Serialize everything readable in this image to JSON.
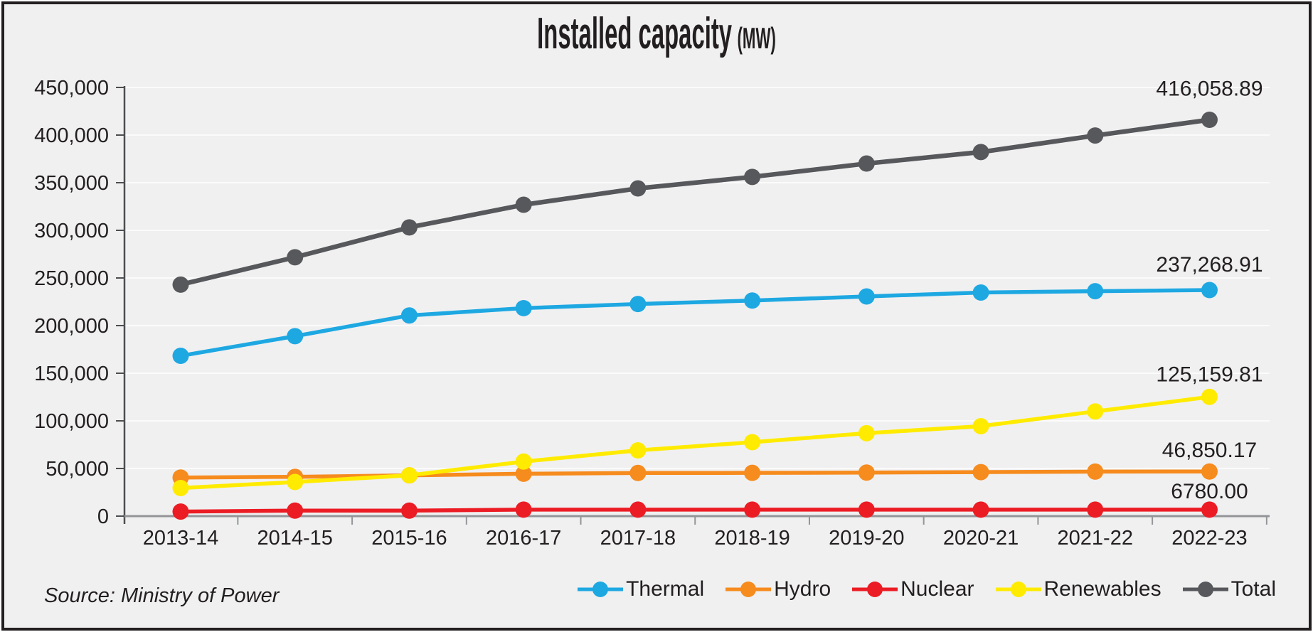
{
  "title": {
    "main": "Installed capacity",
    "unit": "(MW)"
  },
  "source": "Source: Ministry of Power",
  "colors": {
    "background": "#F0F0F1",
    "gridline": "#FBFBFC",
    "y_axis": "#4D4E50",
    "x_axis": "#939598",
    "text": "#231F20",
    "frame_border": "#231F20"
  },
  "chart_data": {
    "type": "line",
    "title": "Installed capacity (MW)",
    "xlabel": "",
    "ylabel": "",
    "grid": true,
    "legend_position": "bottom-right",
    "categories": [
      "2013-14",
      "2014-15",
      "2015-16",
      "2016-17",
      "2017-18",
      "2018-19",
      "2019-20",
      "2020-21",
      "2021-22",
      "2022-23"
    ],
    "y_axis": {
      "min": 0,
      "max": 450000,
      "step": 50000
    },
    "series": [
      {
        "name": "Thermal",
        "color": "#1EA8E2",
        "values": [
          168255,
          188898,
          210675,
          218330,
          222693,
          226279,
          230600,
          234728,
          236109,
          237268.91
        ],
        "end_label": "237,268.91"
      },
      {
        "name": "Hydro",
        "color": "#F68B1E",
        "values": [
          40531,
          41267,
          42783,
          44478,
          45293,
          45399,
          45699,
          46209,
          46723,
          46850.17
        ],
        "end_label": "46,850.17"
      },
      {
        "name": "Nuclear",
        "color": "#EC1C24",
        "values": [
          4780,
          5780,
          5780,
          6780,
          6780,
          6780,
          6780,
          6780,
          6780,
          6780
        ],
        "end_label": "6780.00"
      },
      {
        "name": "Renewables",
        "color": "#FFEB00",
        "values": [
          29463,
          35777,
          42849,
          57244,
          69022,
          77642,
          87028,
          94434,
          109885,
          125159.81
        ],
        "end_label": "125,159.81"
      },
      {
        "name": "Total",
        "color": "#57585B",
        "values": [
          243029,
          271722,
          303083,
          326833,
          344002,
          356100,
          370106,
          382151,
          399497,
          416058.89
        ],
        "end_label": "416,058.89"
      }
    ]
  }
}
